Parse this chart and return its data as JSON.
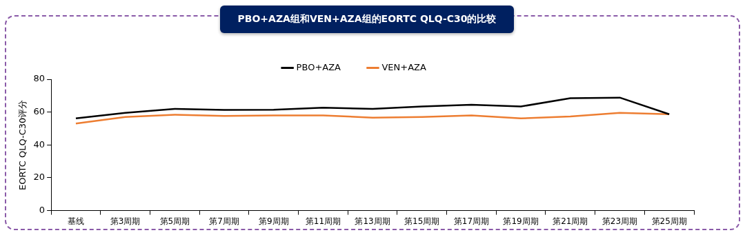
{
  "chart_data": {
    "type": "line",
    "title": "PBO+AZA组和VEN+AZA组的EORTC QLQ-C30的比较",
    "ylabel": "EORTC QLQ-C30评分",
    "categories": [
      "基线",
      "第3周期",
      "第5周期",
      "第7周期",
      "第9周期",
      "第11周期",
      "第13周期",
      "第15周期",
      "第17周期",
      "第19周期",
      "第21周期",
      "第23周期",
      "第25周期"
    ],
    "series": [
      {
        "name": "PBO+AZA",
        "color": "#000000",
        "values": [
          56.2,
          59.5,
          62,
          61.3,
          61.4,
          62.7,
          62,
          63.4,
          64.5,
          63.4,
          68.5,
          68.8,
          58.7
        ]
      },
      {
        "name": "VEN+AZA",
        "color": "#ed7d31",
        "values": [
          53,
          57,
          58.4,
          57.7,
          58,
          58,
          56.6,
          57,
          58,
          56.2,
          57.3,
          59.5,
          58.7
        ]
      }
    ],
    "ylim": [
      0,
      80
    ],
    "yticks": [
      0,
      20,
      40,
      60,
      80
    ],
    "grid": false,
    "legend": "top",
    "marker": "none",
    "line_style": "solid"
  }
}
